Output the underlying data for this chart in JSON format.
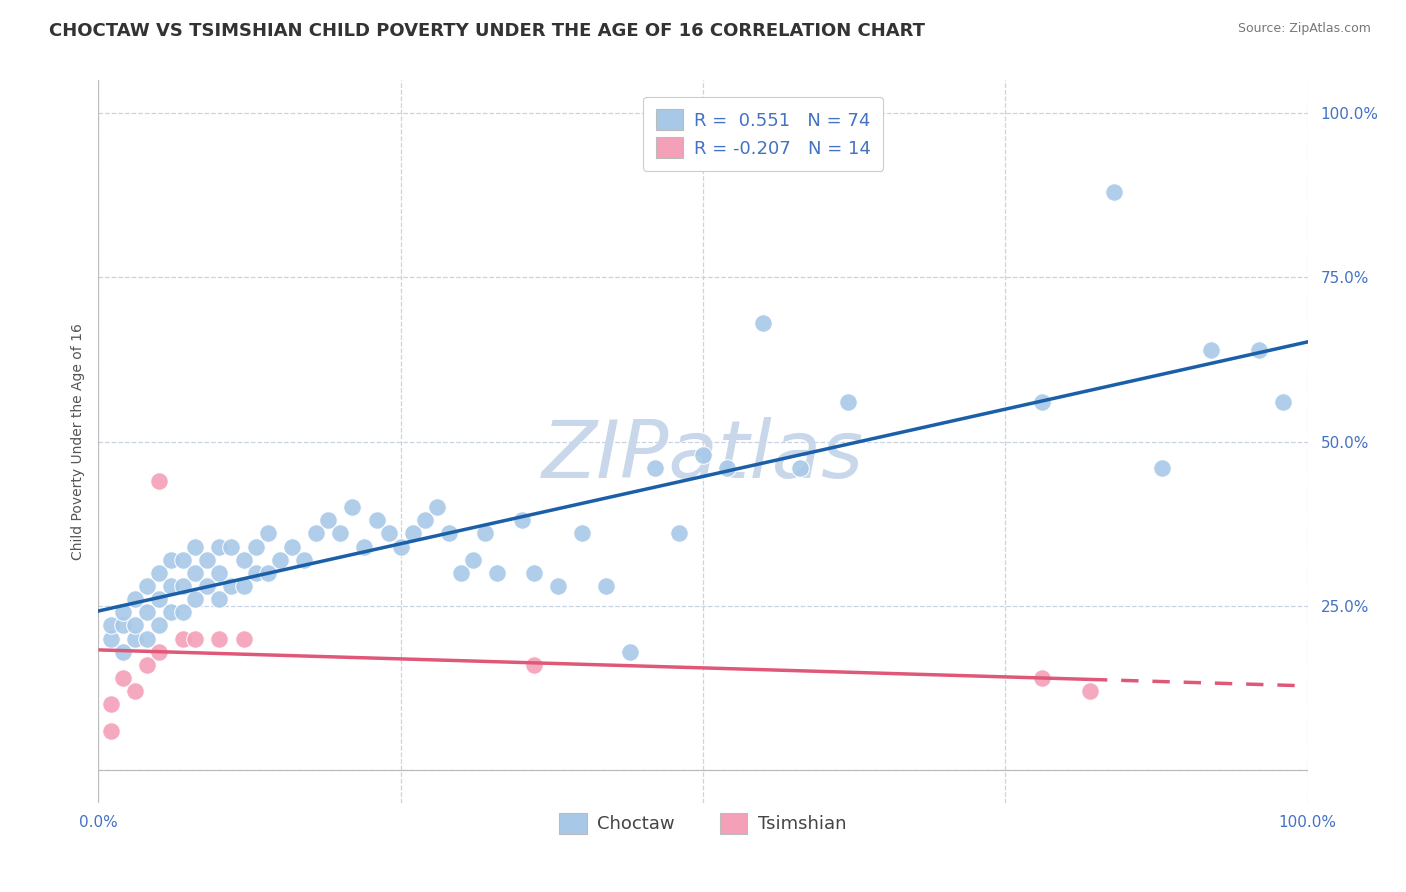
{
  "title": "CHOCTAW VS TSIMSHIAN CHILD POVERTY UNDER THE AGE OF 16 CORRELATION CHART",
  "source": "Source: ZipAtlas.com",
  "ylabel": "Child Poverty Under the Age of 16",
  "xlim": [
    0.0,
    1.0
  ],
  "ylim": [
    -0.05,
    1.05
  ],
  "xticks": [
    0.0,
    0.25,
    0.5,
    0.75,
    1.0
  ],
  "yticks": [
    0.0,
    0.25,
    0.5,
    0.75,
    1.0
  ],
  "xticklabels": [
    "0.0%",
    "",
    "",
    "",
    "100.0%"
  ],
  "yticklabels": [
    "",
    "25.0%",
    "50.0%",
    "75.0%",
    "100.0%"
  ],
  "choctaw_color": "#a8c8e8",
  "tsimshian_color": "#f4a0b8",
  "choctaw_line_color": "#1a5fa8",
  "tsimshian_line_color": "#e05878",
  "watermark": "ZIPatlas",
  "watermark_color": "#c8d8ea",
  "legend_color": "#4472c4",
  "background_color": "#ffffff",
  "grid_color": "#c8d4e4",
  "choctaw_x": [
    0.01,
    0.01,
    0.02,
    0.02,
    0.02,
    0.03,
    0.03,
    0.03,
    0.04,
    0.04,
    0.04,
    0.05,
    0.05,
    0.05,
    0.06,
    0.06,
    0.06,
    0.07,
    0.07,
    0.07,
    0.08,
    0.08,
    0.08,
    0.09,
    0.09,
    0.1,
    0.1,
    0.1,
    0.11,
    0.11,
    0.12,
    0.12,
    0.13,
    0.13,
    0.14,
    0.14,
    0.15,
    0.16,
    0.17,
    0.18,
    0.19,
    0.2,
    0.21,
    0.22,
    0.23,
    0.24,
    0.25,
    0.26,
    0.27,
    0.28,
    0.29,
    0.3,
    0.31,
    0.32,
    0.33,
    0.35,
    0.36,
    0.38,
    0.4,
    0.42,
    0.44,
    0.46,
    0.48,
    0.5,
    0.52,
    0.55,
    0.58,
    0.62,
    0.78,
    0.84,
    0.88,
    0.92,
    0.96,
    0.98
  ],
  "choctaw_y": [
    0.2,
    0.22,
    0.18,
    0.22,
    0.24,
    0.2,
    0.22,
    0.26,
    0.2,
    0.24,
    0.28,
    0.22,
    0.26,
    0.3,
    0.24,
    0.28,
    0.32,
    0.24,
    0.28,
    0.32,
    0.26,
    0.3,
    0.34,
    0.28,
    0.32,
    0.26,
    0.3,
    0.34,
    0.28,
    0.34,
    0.28,
    0.32,
    0.3,
    0.34,
    0.3,
    0.36,
    0.32,
    0.34,
    0.32,
    0.36,
    0.38,
    0.36,
    0.4,
    0.34,
    0.38,
    0.36,
    0.34,
    0.36,
    0.38,
    0.4,
    0.36,
    0.3,
    0.32,
    0.36,
    0.3,
    0.38,
    0.3,
    0.28,
    0.36,
    0.28,
    0.18,
    0.46,
    0.36,
    0.48,
    0.46,
    0.68,
    0.46,
    0.56,
    0.56,
    0.88,
    0.46,
    0.64,
    0.64,
    0.56
  ],
  "tsimshian_x": [
    0.01,
    0.01,
    0.02,
    0.03,
    0.04,
    0.05,
    0.05,
    0.07,
    0.08,
    0.1,
    0.12,
    0.36,
    0.78,
    0.82
  ],
  "tsimshian_y": [
    0.06,
    0.1,
    0.14,
    0.12,
    0.16,
    0.44,
    0.18,
    0.2,
    0.2,
    0.2,
    0.2,
    0.16,
    0.14,
    0.12
  ],
  "title_fontsize": 13,
  "axis_label_fontsize": 10,
  "tick_fontsize": 11,
  "legend_fontsize": 13
}
